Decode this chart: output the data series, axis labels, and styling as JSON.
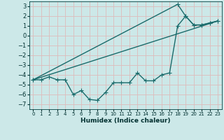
{
  "xlabel": "Humidex (Indice chaleur)",
  "background_color": "#cce8e8",
  "grid_color": "#ddbbbb",
  "line_color": "#1a6b6b",
  "xlim": [
    -0.5,
    23.5
  ],
  "ylim": [
    -7.5,
    3.5
  ],
  "yticks": [
    -7,
    -6,
    -5,
    -4,
    -3,
    -2,
    -1,
    0,
    1,
    2,
    3
  ],
  "xticks": [
    0,
    1,
    2,
    3,
    4,
    5,
    6,
    7,
    8,
    9,
    10,
    11,
    12,
    13,
    14,
    15,
    16,
    17,
    18,
    19,
    20,
    21,
    22,
    23
  ],
  "line1_x": [
    0,
    1,
    2,
    3,
    4,
    5,
    6,
    7,
    8,
    9,
    10,
    11,
    12,
    13,
    14,
    15,
    16,
    17,
    18,
    19,
    20,
    21,
    22,
    23
  ],
  "line1_y": [
    -4.5,
    -4.5,
    -4.2,
    -4.5,
    -4.5,
    -6.0,
    -5.6,
    -6.5,
    -6.6,
    -5.8,
    -4.8,
    -4.8,
    -4.8,
    -3.8,
    -4.6,
    -4.6,
    -4.0,
    -3.8,
    1.0,
    2.0,
    1.1,
    1.1,
    1.3,
    1.5
  ],
  "line2_x": [
    0,
    23
  ],
  "line2_y": [
    -4.5,
    1.5
  ],
  "line3_x": [
    0,
    18,
    19,
    20,
    21,
    22,
    23
  ],
  "line3_y": [
    -4.5,
    3.2,
    2.0,
    1.1,
    1.1,
    1.3,
    1.5
  ],
  "marker": "+",
  "markersize": 4,
  "linewidth": 1.0
}
